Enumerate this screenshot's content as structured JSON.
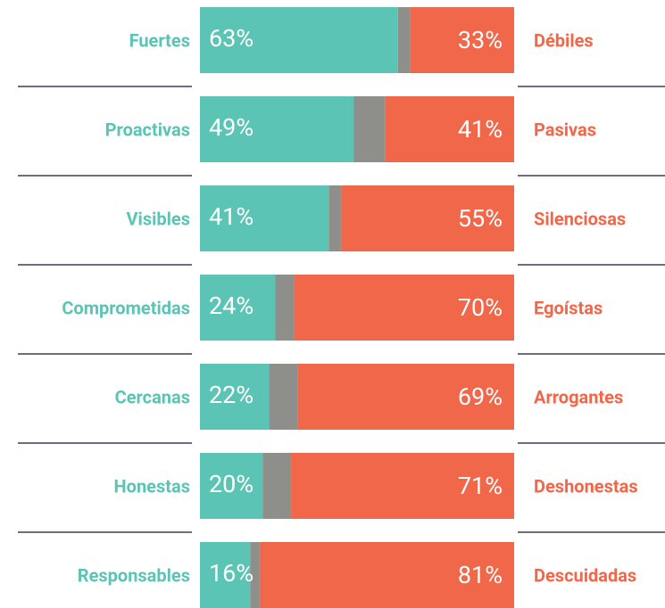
{
  "chart_data": {
    "type": "diverging_bar",
    "left_labels": [
      "Fuertes",
      "Proactivas",
      "Visibles",
      "Comprometidas",
      "Cercanas",
      "Honestas",
      "Responsables"
    ],
    "right_labels": [
      "Débiles",
      "Pasivas",
      "Silenciosas",
      "Egoístas",
      "Arrogantes",
      "Deshonestas",
      "Descuidadas"
    ],
    "xlim": [
      0,
      100
    ],
    "series": [
      {
        "color": "#5bc4b5",
        "values": [
          63,
          49,
          41,
          24,
          22,
          20,
          16
        ],
        "value_labels": [
          "63%",
          "49%",
          "41%",
          "24%",
          "22%",
          "20%",
          "16%"
        ]
      },
      {
        "color": "#8e8e8a",
        "values": [
          4,
          10,
          4,
          6,
          9,
          9,
          3
        ]
      },
      {
        "color": "#f0674a",
        "values": [
          33,
          41,
          55,
          70,
          69,
          71,
          81
        ],
        "value_labels": [
          "33%",
          "41%",
          "55%",
          "70%",
          "69%",
          "71%",
          "81%"
        ]
      }
    ]
  }
}
